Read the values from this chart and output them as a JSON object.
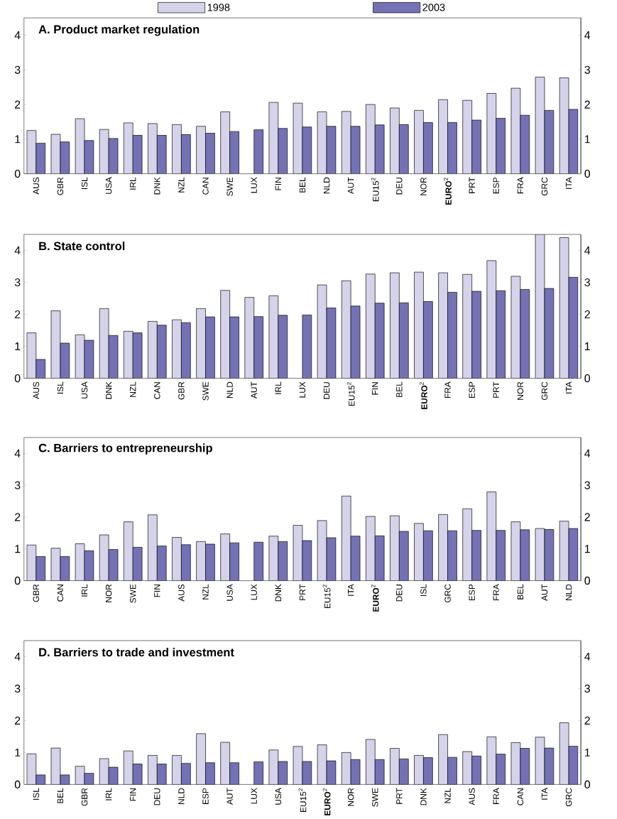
{
  "chart_data": [
    {
      "type": "bar",
      "title": "**A. Product market regulation**",
      "legend": "top",
      "categories": [
        "AUS",
        "GBR",
        "ISL",
        "USA",
        "IRL",
        "DNK",
        "NZL",
        "CAN",
        "SWE",
        "LUX",
        "FIN",
        "BEL",
        "NLD",
        "AUT",
        "EU15$^{2}$",
        "DEU",
        "NOR",
        "**EURO**$^{2}$",
        "PRT",
        "ESP",
        "FRA",
        "GRC",
        "ITA"
      ],
      "series": [
        {
          "name": "1998",
          "color": "#d4d3ea",
          "values": [
            1.25,
            1.14,
            1.59,
            1.28,
            1.47,
            1.45,
            1.42,
            1.37,
            1.79,
            null,
            2.06,
            2.04,
            1.79,
            1.8,
            2.0,
            1.9,
            1.83,
            2.14,
            2.12,
            2.32,
            2.47,
            2.79,
            2.77
          ]
        },
        {
          "name": "2003",
          "color": "#7472b5",
          "values": [
            0.88,
            0.92,
            0.96,
            1.02,
            1.11,
            1.11,
            1.13,
            1.17,
            1.22,
            1.27,
            1.31,
            1.35,
            1.37,
            1.37,
            1.41,
            1.42,
            1.48,
            1.48,
            1.55,
            1.6,
            1.69,
            1.83,
            1.86
          ]
        }
      ],
      "ylim": [
        0,
        4.5
      ],
      "yticks": [
        0,
        1,
        2,
        3,
        4
      ],
      "y2lim": [
        0,
        4.5
      ],
      "y2ticks": [
        0,
        1,
        2,
        3,
        4
      ]
    },
    {
      "type": "bar",
      "title": "**B. State control**",
      "categories": [
        "AUS",
        "ISL",
        "USA",
        "DNK",
        "NZL",
        "CAN",
        "GBR",
        "SWE",
        "NLD",
        "AUT",
        "IRL",
        "LUX",
        "DEU",
        "EU15$^{2}$",
        "FIN",
        "BEL",
        "**EURO**$^{2}$",
        "FRA",
        "ESP",
        "PRT",
        "NOR",
        "GRC",
        "ITA"
      ],
      "series": [
        {
          "color": "#d4d3ea",
          "values": [
            1.42,
            2.11,
            1.36,
            2.18,
            1.47,
            1.78,
            1.83,
            2.18,
            2.75,
            2.53,
            2.58,
            null,
            2.92,
            3.05,
            3.26,
            3.3,
            3.32,
            3.3,
            3.25,
            3.68,
            3.19,
            4.5,
            4.4
          ]
        },
        {
          "color": "#7472b5",
          "values": [
            0.59,
            1.1,
            1.19,
            1.34,
            1.42,
            1.66,
            1.74,
            1.92,
            1.92,
            1.93,
            1.97,
            1.98,
            2.2,
            2.26,
            2.35,
            2.36,
            2.4,
            2.69,
            2.72,
            2.74,
            2.78,
            2.81,
            3.16
          ]
        }
      ],
      "ylim": [
        0,
        4.5
      ],
      "yticks": [
        0,
        1,
        2,
        3,
        4
      ],
      "y2lim": [
        0,
        4.5
      ],
      "y2ticks": [
        0,
        1,
        2,
        3,
        4
      ]
    },
    {
      "type": "bar",
      "title": "**C. Barriers to entrepreneurship**",
      "categories": [
        "GBR",
        "CAN",
        "IRL",
        "NOR",
        "SWE",
        "FIN",
        "AUS",
        "NZL",
        "USA",
        "LUX",
        "DNK",
        "PRT",
        "EU15$^{2}$",
        "ITA",
        "**EURO**$^{2}$",
        "DEU",
        "ISL",
        "GRC",
        "ESP",
        "FRA",
        "BEL",
        "AUT",
        "NLD"
      ],
      "series": [
        {
          "color": "#d4d3ea",
          "values": [
            1.12,
            1.02,
            1.16,
            1.44,
            1.85,
            2.07,
            1.36,
            1.23,
            1.47,
            null,
            1.4,
            1.74,
            1.89,
            2.66,
            2.02,
            2.04,
            1.8,
            2.08,
            2.26,
            2.79,
            1.85,
            1.64,
            1.87
          ]
        },
        {
          "color": "#7472b5",
          "values": [
            0.76,
            0.76,
            0.94,
            0.98,
            1.05,
            1.09,
            1.13,
            1.15,
            1.19,
            1.21,
            1.23,
            1.26,
            1.35,
            1.4,
            1.41,
            1.55,
            1.57,
            1.57,
            1.58,
            1.58,
            1.6,
            1.61,
            1.64
          ]
        }
      ],
      "ylim": [
        0,
        4.5
      ],
      "yticks": [
        0,
        1,
        2,
        3,
        4
      ],
      "y2lim": [
        0,
        4.5
      ],
      "y2ticks": [
        0,
        1,
        2,
        3,
        4
      ]
    },
    {
      "type": "bar",
      "title": "**D. Barriers to trade and investment**",
      "categories": [
        "ISL",
        "BEL",
        "GBR",
        "IRL",
        "FIN",
        "DEU",
        "NLD",
        "ESP",
        "AUT",
        "LUX",
        "USA",
        "EU15$^{2}$",
        "**EURO**$^{2}$",
        "NOR",
        "SWE",
        "PRT",
        "DNK",
        "NZL",
        "AUS",
        "FRA",
        "CAN",
        "ITA",
        "GRC"
      ],
      "series": [
        {
          "color": "#d4d3ea",
          "values": [
            0.96,
            1.14,
            0.57,
            0.81,
            1.05,
            0.91,
            0.91,
            1.59,
            1.32,
            null,
            1.08,
            1.19,
            1.24,
            1.0,
            1.41,
            1.13,
            0.91,
            1.56,
            1.03,
            1.49,
            1.31,
            1.48,
            1.93
          ]
        },
        {
          "color": "#7472b5",
          "values": [
            0.3,
            0.3,
            0.35,
            0.54,
            0.64,
            0.64,
            0.66,
            0.68,
            0.68,
            0.71,
            0.72,
            0.72,
            0.74,
            0.78,
            0.78,
            0.8,
            0.84,
            0.85,
            0.89,
            0.95,
            1.13,
            1.14,
            1.2
          ]
        }
      ],
      "ylim": [
        0,
        4.5
      ],
      "yticks": [
        0,
        1,
        2,
        3,
        4
      ],
      "y2lim": [
        0,
        4.5
      ],
      "y2ticks": [
        0,
        1,
        2,
        3,
        4
      ]
    }
  ]
}
